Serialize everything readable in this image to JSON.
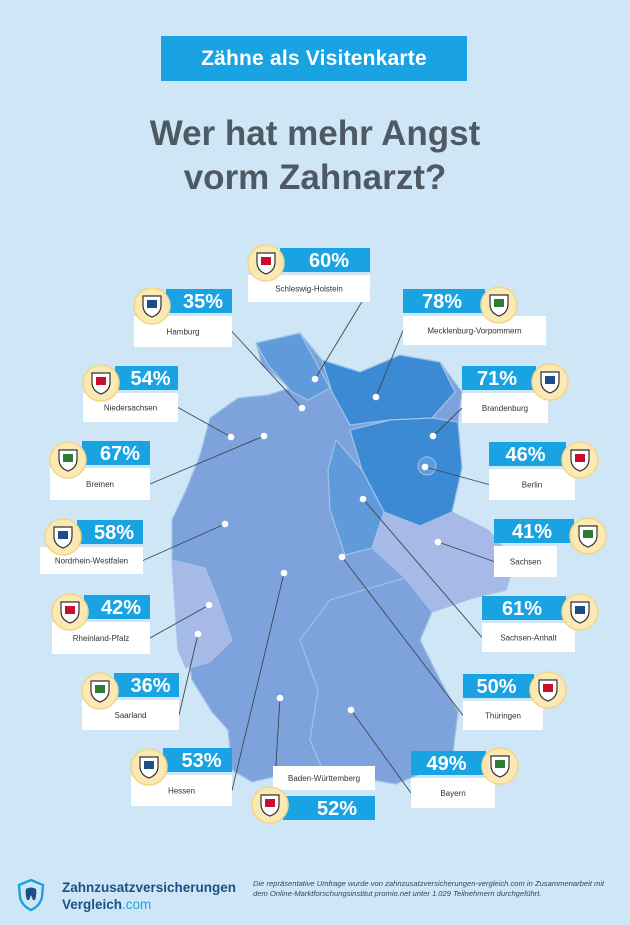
{
  "banner": "Zähne als Visitenkarte",
  "title_line1": "Wer hat mehr Angst",
  "title_line2": "vorm Zahnarzt?",
  "colors": {
    "background": "#cfe6f6",
    "accent": "#1aa3e3",
    "map_dark": "#3d8ad4",
    "map_mid": "#5f9bdb",
    "map_light": "#7ea3dc",
    "map_pale": "#a7b9e6",
    "text_dark": "#4d5a64"
  },
  "chart_data": {
    "type": "table",
    "title": "Wer hat mehr Angst vorm Zahnarzt?",
    "unit": "%",
    "categories": [
      "Schleswig-Holstein",
      "Hamburg",
      "Mecklenburg-Vorpommern",
      "Niedersachsen",
      "Brandenburg",
      "Bremen",
      "Berlin",
      "Nordrhein-Westfalen",
      "Sachsen",
      "Rheinland-Pfalz",
      "Sachsen-Anhalt",
      "Saarland",
      "Thüringen",
      "Hessen",
      "Bayern",
      "Baden-Württemberg"
    ],
    "values": [
      60,
      35,
      78,
      54,
      71,
      67,
      46,
      58,
      41,
      42,
      61,
      36,
      50,
      53,
      49,
      52
    ],
    "labels": [
      "60%",
      "35%",
      "78%",
      "54%",
      "71%",
      "67%",
      "46%",
      "58%",
      "41%",
      "42%",
      "61%",
      "36%",
      "50%",
      "53%",
      "49%",
      "52%"
    ]
  },
  "footer": {
    "logo_line1": "Zahnzusatzversicherungen",
    "logo_line2a": "Vergleich",
    "logo_line2b": ".com",
    "note": "Die repräsentative Umfrage wurde von zahnzusatzversicherungen-vergleich.com in Zusammenarbeit mit dem Online-Marktforschungsinstitut promio.net unter 1.029 Teilnehmern durchgeführt."
  }
}
